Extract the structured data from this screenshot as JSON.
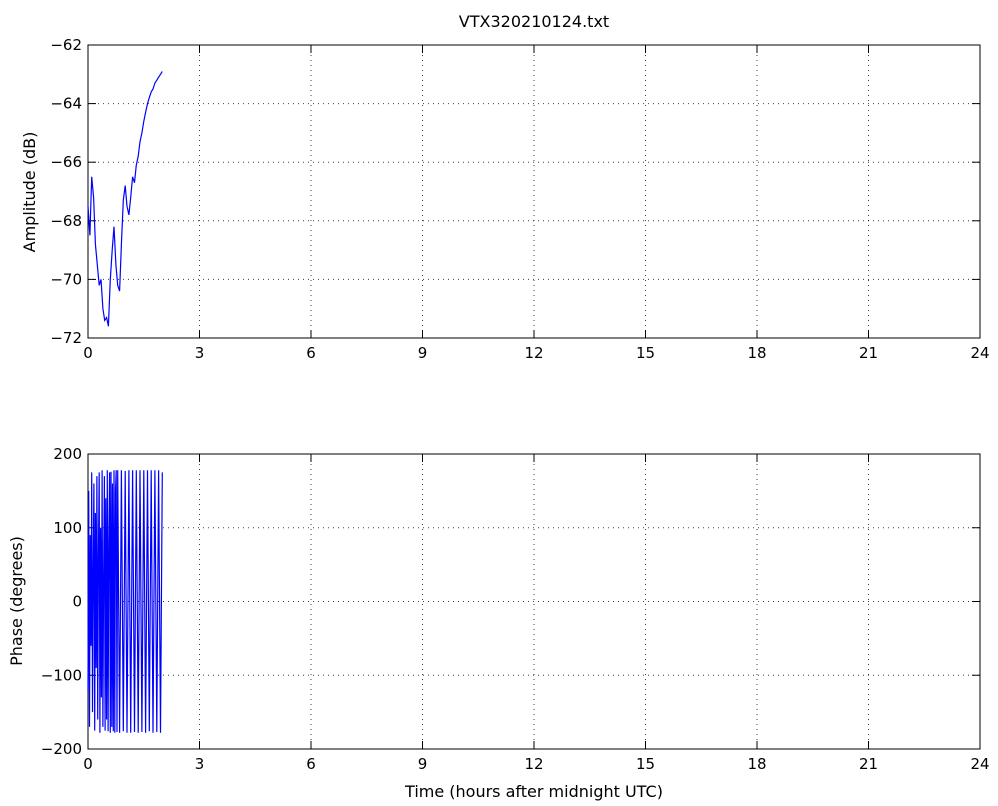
{
  "chart_data": [
    {
      "type": "line",
      "title": "VTX320210124.txt",
      "xlabel": "",
      "ylabel": "Amplitude (dB)",
      "xlim": [
        0,
        24
      ],
      "ylim": [
        -72,
        -62
      ],
      "xticks": [
        "0",
        "3",
        "6",
        "9",
        "12",
        "15",
        "18",
        "21",
        "24"
      ],
      "yticks": [
        "−62",
        "−64",
        "−66",
        "−68",
        "−70",
        "−72"
      ],
      "grid": true,
      "color": "#0000ff",
      "series": [
        {
          "x": [
            0.0,
            0.05,
            0.1,
            0.15,
            0.2,
            0.25,
            0.3,
            0.35,
            0.4,
            0.45,
            0.5,
            0.55,
            0.6,
            0.65,
            0.7,
            0.75,
            0.8,
            0.85,
            0.9,
            0.95,
            1.0,
            1.05,
            1.1,
            1.15,
            1.2,
            1.25,
            1.3,
            1.35,
            1.4,
            1.45,
            1.5,
            1.55,
            1.6,
            1.65,
            1.7,
            1.75,
            1.8,
            1.85,
            1.9,
            1.95,
            2.0
          ],
          "values": [
            -67.5,
            -68.5,
            -66.5,
            -67.2,
            -68.8,
            -69.5,
            -70.2,
            -70.0,
            -71.0,
            -71.4,
            -71.3,
            -71.6,
            -70.0,
            -69.0,
            -68.2,
            -69.5,
            -70.2,
            -70.4,
            -68.8,
            -67.3,
            -66.8,
            -67.5,
            -67.8,
            -67.2,
            -66.5,
            -66.7,
            -66.1,
            -65.8,
            -65.3,
            -65.0,
            -64.6,
            -64.3,
            -64.0,
            -63.8,
            -63.6,
            -63.5,
            -63.3,
            -63.2,
            -63.1,
            -63.0,
            -62.9
          ]
        }
      ]
    },
    {
      "type": "line",
      "title": "",
      "xlabel": "Time (hours after midnight UTC)",
      "ylabel": "Phase (degrees)",
      "xlim": [
        0,
        24
      ],
      "ylim": [
        -200,
        200
      ],
      "xticks": [
        "0",
        "3",
        "6",
        "9",
        "12",
        "15",
        "18",
        "21",
        "24"
      ],
      "yticks": [
        "200",
        "100",
        "0",
        "−100",
        "−200"
      ],
      "grid": true,
      "color": "#0000ff",
      "series": [
        {
          "x": [
            0.0,
            0.02,
            0.04,
            0.06,
            0.08,
            0.1,
            0.12,
            0.14,
            0.16,
            0.18,
            0.2,
            0.22,
            0.24,
            0.26,
            0.28,
            0.3,
            0.32,
            0.34,
            0.36,
            0.38,
            0.4,
            0.42,
            0.44,
            0.46,
            0.48,
            0.5,
            0.52,
            0.54,
            0.56,
            0.58,
            0.6,
            0.62,
            0.64,
            0.66,
            0.68,
            0.7,
            0.72,
            0.74,
            0.76,
            0.78,
            0.8,
            0.85,
            0.9,
            0.95,
            1.0,
            1.05,
            1.1,
            1.15,
            1.2,
            1.25,
            1.3,
            1.35,
            1.4,
            1.45,
            1.5,
            1.55,
            1.6,
            1.65,
            1.7,
            1.75,
            1.8,
            1.85,
            1.9,
            1.95,
            2.0
          ],
          "values": [
            -120,
            150,
            -170,
            90,
            -60,
            175,
            -150,
            40,
            160,
            -175,
            120,
            -90,
            170,
            -160,
            60,
            175,
            -178,
            100,
            -130,
            178,
            -170,
            30,
            170,
            -175,
            140,
            -160,
            178,
            -176,
            80,
            175,
            -178,
            176,
            -170,
            160,
            -176,
            178,
            -178,
            150,
            178,
            -177,
            178,
            -178,
            178,
            -176,
            177,
            -178,
            178,
            -178,
            178,
            -177,
            178,
            -178,
            178,
            -177,
            178,
            -178,
            178,
            -176,
            178,
            -178,
            178,
            -177,
            178,
            -178,
            175
          ]
        }
      ]
    }
  ]
}
